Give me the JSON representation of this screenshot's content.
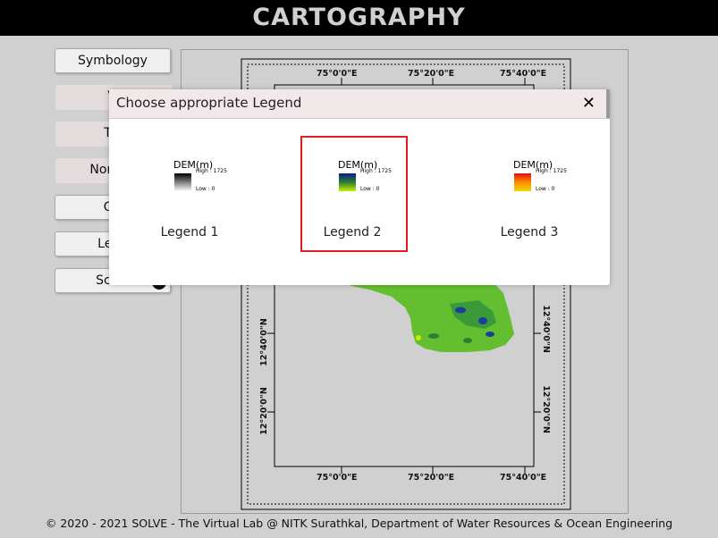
{
  "header": {
    "title": "CARTOGRAPHY"
  },
  "sidebar": {
    "buttons": [
      {
        "label": "Symbology"
      },
      {
        "label": "Vi"
      },
      {
        "label": "Titl"
      },
      {
        "label": "North A"
      },
      {
        "label": "Gri"
      },
      {
        "label": "Lege"
      },
      {
        "label": "Scale"
      }
    ]
  },
  "map": {
    "top_labels": [
      "75°0'0\"E",
      "75°20'0\"E",
      "75°40'0\"E"
    ],
    "bottom_labels": [
      "75°0'0\"E",
      "75°20'0\"E",
      "75°40'0\"E"
    ],
    "left_labels": [
      "12°40'0\"N",
      "12°20'0\"N"
    ],
    "right_labels": [
      "12°40'0\"N",
      "12°20'0\"N"
    ]
  },
  "modal": {
    "title": "Choose appropriate Legend",
    "close_icon": "close-icon",
    "options": [
      {
        "label": "Legend 1",
        "dem_title": "DEM(m)",
        "high": "High : 1725",
        "low": "Low : 0",
        "ramp": [
          "#000000",
          "#ffffff"
        ],
        "selected": false
      },
      {
        "label": "Legend 2",
        "dem_title": "DEM(m)",
        "high": "High : 1725",
        "low": "Low : 0",
        "ramp": [
          "#0a1d8a",
          "#2e7d32",
          "#c6f000"
        ],
        "selected": true
      },
      {
        "label": "Legend 3",
        "dem_title": "DEM(m)",
        "high": "High : 1725",
        "low": "Low : 0",
        "ramp": [
          "#e01010",
          "#ff8c00",
          "#f2d600"
        ],
        "selected": false
      }
    ]
  },
  "footer": {
    "text": "© 2020 - 2021 SOLVE - The Virtual Lab @ NITK Surathkal, Department of Water Resources & Ocean Engineering"
  },
  "colors": {
    "accent_selection": "#e01b24",
    "header_bg": "#000000",
    "page_bg": "#d0d0d0"
  }
}
